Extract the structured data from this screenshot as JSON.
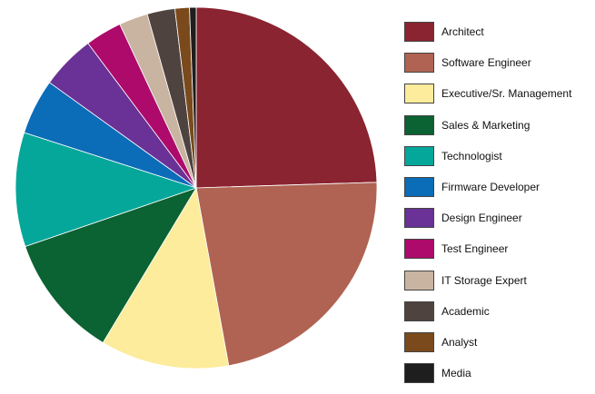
{
  "chart_data": {
    "type": "pie",
    "start_angle_deg": 0,
    "direction": "clockwise",
    "legend_position": "right",
    "slices": [
      {
        "label": "Architect",
        "value": 24.7,
        "color": "#8a2430"
      },
      {
        "label": "Software Engineer",
        "value": 22.8,
        "color": "#b06352"
      },
      {
        "label": "Executive/Sr. Management",
        "value": 11.6,
        "color": "#fcec9b"
      },
      {
        "label": "Sales & Marketing",
        "value": 11.2,
        "color": "#0b6232"
      },
      {
        "label": "Technologist",
        "value": 10.3,
        "color": "#05a79a"
      },
      {
        "label": "Firmware Developer",
        "value": 5.0,
        "color": "#0b6cb8"
      },
      {
        "label": "Design Engineer",
        "value": 4.9,
        "color": "#6a3196"
      },
      {
        "label": "Test Engineer",
        "value": 3.3,
        "color": "#ad0a6b"
      },
      {
        "label": "IT Storage Expert",
        "value": 2.6,
        "color": "#c8b4a0"
      },
      {
        "label": "Academic",
        "value": 2.5,
        "color": "#4f4340"
      },
      {
        "label": "Analyst",
        "value": 1.3,
        "color": "#7a4a1c"
      },
      {
        "label": "Media",
        "value": 0.6,
        "color": "#1e1e1e"
      }
    ]
  }
}
